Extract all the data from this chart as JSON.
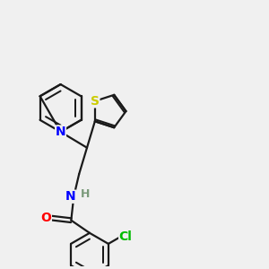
{
  "background_color": "#f0f0f0",
  "bond_color": "#1a1a1a",
  "N_color": "#0000ff",
  "O_color": "#ff0000",
  "S_color": "#cccc00",
  "Cl_color": "#00bb00",
  "H_color": "#7a9a7a",
  "line_width": 1.6,
  "font_size": 10,
  "xlim": [
    0,
    10
  ],
  "ylim": [
    0,
    10
  ]
}
